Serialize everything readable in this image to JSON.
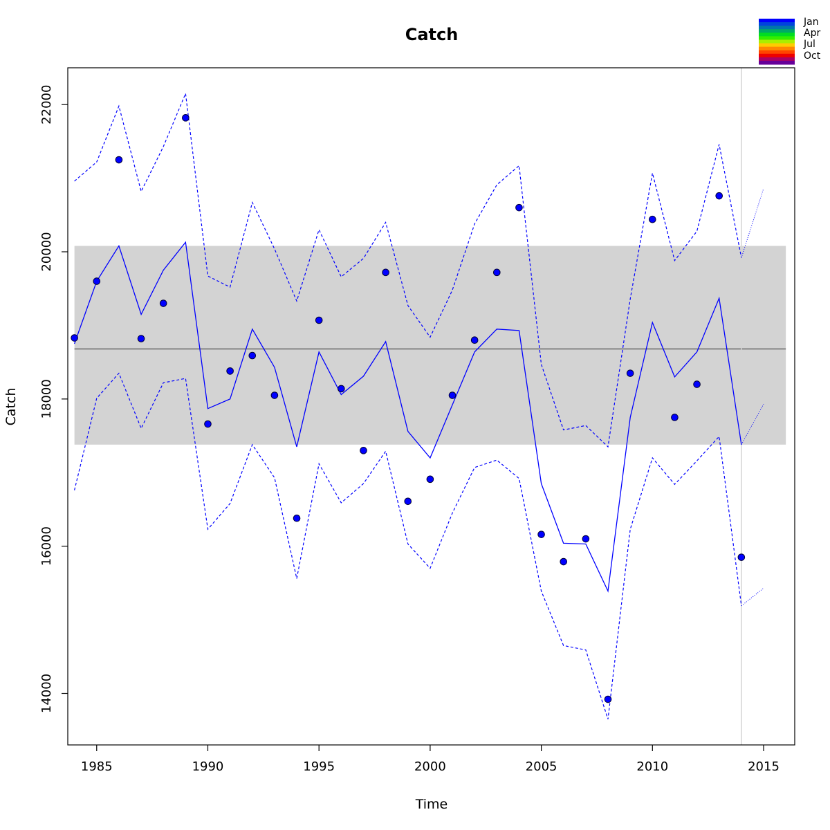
{
  "chart_data": {
    "type": "line",
    "title": "Catch",
    "xlabel": "Time",
    "ylabel": "Catch",
    "xlim": [
      1983.7,
      2016.4
    ],
    "ylim": [
      13300,
      22500
    ],
    "x_ticks": [
      1985,
      1990,
      1995,
      2000,
      2005,
      2010,
      2015
    ],
    "y_ticks": [
      14000,
      16000,
      18000,
      20000,
      22000
    ],
    "grid": false,
    "band": {
      "x_start": 1984,
      "x_end": 2016,
      "lower": 17380,
      "upper": 20080,
      "color": "#d3d3d3"
    },
    "mean_line": {
      "value": 18680,
      "x_start": 1984,
      "x_end": 2016,
      "color": "#666666"
    },
    "vline": {
      "x": 2014,
      "color": "#d3d3d3"
    },
    "fitted": {
      "x": [
        1984,
        1985,
        1986,
        1987,
        1988,
        1989,
        1990,
        1991,
        1992,
        1993,
        1994,
        1995,
        1996,
        1997,
        1998,
        1999,
        2000,
        2001,
        2002,
        2003,
        2004,
        2005,
        2006,
        2007,
        2008,
        2009,
        2010,
        2011,
        2012,
        2013,
        2014
      ],
      "values": [
        18750,
        19600,
        20080,
        19150,
        19750,
        20130,
        17870,
        18000,
        18950,
        18430,
        17350,
        18640,
        18060,
        18310,
        18780,
        17560,
        17200,
        17920,
        18640,
        18950,
        18930,
        16850,
        16040,
        16030,
        15390,
        17750,
        19040,
        18300,
        18640,
        19370,
        17380
      ],
      "color": "#0000ff"
    },
    "upper_bound": {
      "x": [
        1984,
        1985,
        1986,
        1987,
        1988,
        1989,
        1990,
        1991,
        1992,
        1993,
        1994,
        1995,
        1996,
        1997,
        1998,
        1999,
        2000,
        2001,
        2002,
        2003,
        2004,
        2005,
        2006,
        2007,
        2008,
        2009,
        2010,
        2011,
        2012,
        2013,
        2014
      ],
      "values": [
        20960,
        21220,
        21980,
        20820,
        21430,
        22150,
        19670,
        19520,
        20670,
        20040,
        19330,
        20300,
        19660,
        19910,
        20400,
        19270,
        18840,
        19480,
        20380,
        20910,
        21170,
        18470,
        17580,
        17640,
        17350,
        19360,
        21070,
        19880,
        20280,
        21460,
        19920
      ],
      "color": "#0000ff"
    },
    "lower_bound": {
      "x": [
        1984,
        1985,
        1986,
        1987,
        1988,
        1989,
        1990,
        1991,
        1992,
        1993,
        1994,
        1995,
        1996,
        1997,
        1998,
        1999,
        2000,
        2001,
        2002,
        2003,
        2004,
        2005,
        2006,
        2007,
        2008,
        2009,
        2010,
        2011,
        2012,
        2013,
        2014
      ],
      "values": [
        16760,
        18010,
        18350,
        17600,
        18220,
        18280,
        16230,
        16580,
        17380,
        16930,
        15560,
        17120,
        16590,
        16850,
        17290,
        16030,
        15700,
        16450,
        17070,
        17170,
        16920,
        15390,
        14650,
        14590,
        13650,
        16230,
        17200,
        16840,
        17160,
        17490,
        15190
      ],
      "color": "#0000ff"
    },
    "forecast": {
      "x": [
        2014,
        2015
      ],
      "mean": [
        17380,
        17930
      ],
      "upper": [
        19920,
        20860
      ],
      "lower": [
        15190,
        15430
      ],
      "color": "#0000ff"
    },
    "observed": {
      "x": [
        1984,
        1985,
        1986,
        1987,
        1988,
        1989,
        1990,
        1991,
        1992,
        1993,
        1994,
        1995,
        1996,
        1997,
        1998,
        1999,
        2000,
        2001,
        2002,
        2003,
        2004,
        2005,
        2006,
        2007,
        2008,
        2009,
        2010,
        2011,
        2012,
        2013,
        2014
      ],
      "values": [
        18830,
        19600,
        21250,
        18820,
        19300,
        21820,
        17660,
        18380,
        18590,
        18050,
        16380,
        19070,
        18140,
        17300,
        19720,
        16610,
        16910,
        18050,
        18800,
        19720,
        20600,
        16160,
        15790,
        16100,
        13920,
        18350,
        20440,
        17750,
        18200,
        20760,
        15850
      ],
      "color": "#0000ff"
    },
    "legend": {
      "placement": "top-right",
      "labels": [
        "Jan",
        "Apr",
        "Jul",
        "Oct"
      ],
      "colors": [
        "#0000ff",
        "#0044dd",
        "#0077aa",
        "#00aa66",
        "#00dd22",
        "#33ee00",
        "#aaee00",
        "#ffcc00",
        "#ff8800",
        "#ff4400",
        "#ee0000",
        "#aa0066",
        "#660099"
      ]
    }
  }
}
